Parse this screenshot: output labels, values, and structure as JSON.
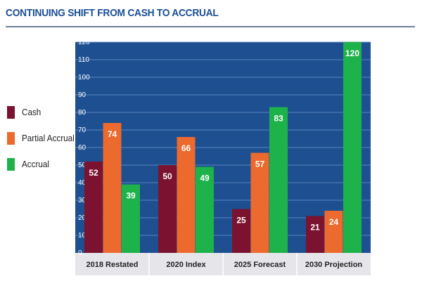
{
  "chart_data": {
    "type": "bar",
    "title": "CONTINUING SHIFT FROM CASH TO ACCRUAL",
    "categories": [
      "2018 Restated",
      "2020 Index",
      "2025 Forecast",
      "2030 Projection"
    ],
    "series": [
      {
        "name": "Cash",
        "color": "#7a1230",
        "values": [
          52,
          50,
          25,
          21
        ]
      },
      {
        "name": "Partial Accrual",
        "color": "#ec6a2d",
        "values": [
          74,
          66,
          57,
          24
        ]
      },
      {
        "name": "Accrual",
        "color": "#1eb24b",
        "values": [
          39,
          49,
          83,
          120
        ]
      }
    ],
    "ylim": [
      0,
      120
    ],
    "yticks": [
      0,
      10,
      20,
      30,
      40,
      50,
      60,
      70,
      80,
      90,
      100,
      110,
      120
    ],
    "plot_background": "#1d4f91",
    "xlabel": "",
    "ylabel": ""
  }
}
